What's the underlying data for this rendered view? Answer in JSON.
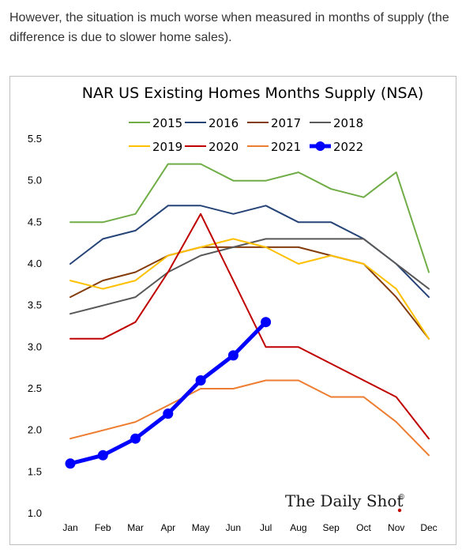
{
  "intro_text": "However, the situation is much worse when measured in months of supply (the difference is due to slower home sales).",
  "chart_data": {
    "type": "line",
    "title": "NAR US Existing Homes Months Supply (NSA)",
    "xlabel": "",
    "ylabel": "",
    "categories": [
      "Jan",
      "Feb",
      "Mar",
      "Apr",
      "May",
      "Jun",
      "Jul",
      "Aug",
      "Sep",
      "Oct",
      "Nov",
      "Dec"
    ],
    "ylim": [
      1.0,
      5.5
    ],
    "yticks": [
      "1.0",
      "1.5",
      "2.0",
      "2.5",
      "3.0",
      "3.5",
      "4.0",
      "4.5",
      "5.0",
      "5.5"
    ],
    "grid": false,
    "legend_position": "top",
    "series": [
      {
        "name": "2015",
        "color": "#70ad47",
        "values": [
          4.5,
          4.5,
          4.6,
          5.2,
          5.2,
          5.0,
          5.0,
          5.1,
          4.9,
          4.8,
          5.1,
          3.9
        ]
      },
      {
        "name": "2016",
        "color": "#264478",
        "values": [
          4.0,
          4.3,
          4.4,
          4.7,
          4.7,
          4.6,
          4.7,
          4.5,
          4.5,
          4.3,
          4.0,
          3.6
        ]
      },
      {
        "name": "2017",
        "color": "#843c0c",
        "values": [
          3.6,
          3.8,
          3.9,
          4.1,
          4.2,
          4.2,
          4.2,
          4.2,
          4.1,
          4.0,
          3.6,
          3.1
        ]
      },
      {
        "name": "2018",
        "color": "#595959",
        "values": [
          3.4,
          3.5,
          3.6,
          3.9,
          4.1,
          4.2,
          4.3,
          4.3,
          4.3,
          4.3,
          4.0,
          3.7
        ]
      },
      {
        "name": "2019",
        "color": "#ffc000",
        "values": [
          3.8,
          3.7,
          3.8,
          4.1,
          4.2,
          4.3,
          4.2,
          4.0,
          4.1,
          4.0,
          3.7,
          3.1
        ]
      },
      {
        "name": "2020",
        "color": "#c00000",
        "values": [
          3.1,
          3.1,
          3.3,
          3.9,
          4.6,
          3.8,
          3.0,
          3.0,
          null,
          null,
          2.4,
          1.9
        ]
      },
      {
        "name": "2021",
        "color": "#ed7d31",
        "values": [
          1.9,
          2.0,
          2.1,
          2.3,
          2.5,
          2.5,
          2.6,
          2.6,
          2.4,
          2.4,
          2.1,
          1.7
        ]
      },
      {
        "name": "2022",
        "color": "#0000ff",
        "values": [
          1.6,
          1.7,
          1.9,
          2.2,
          2.6,
          2.9,
          3.3,
          null,
          null,
          null,
          null,
          null
        ],
        "markers": true
      }
    ],
    "source_logo": "The Daily Shot",
    "source_logo_mark": "®"
  }
}
